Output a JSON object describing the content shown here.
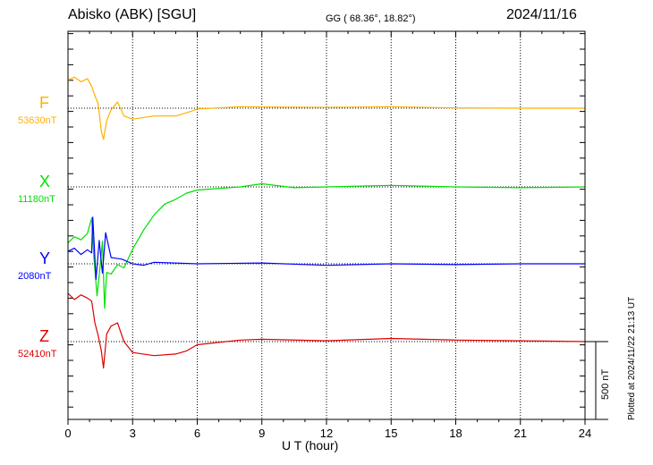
{
  "header": {
    "station": "Abisko (ABK)  [SGU]",
    "coords": "GG ( 68.36°,  18.82°)",
    "date": "2024/11/16"
  },
  "footer": {
    "plotted": "Plotted at 2024/11/22 21:13 UT"
  },
  "chart_data": {
    "type": "line",
    "xlabel": "U T (hour)",
    "xlim": [
      0,
      24
    ],
    "xticks": [
      "0",
      "3",
      "6",
      "9",
      "12",
      "15",
      "18",
      "21",
      "24"
    ],
    "scale_bar_label": "500 nT",
    "scale_bar_nT": 500,
    "series": [
      {
        "name": "F",
        "baseline": "53630nT",
        "color": "#ffb000",
        "x": [
          0,
          0.3,
          0.6,
          0.9,
          1.1,
          1.25,
          1.4,
          1.55,
          1.65,
          1.8,
          2.0,
          2.3,
          2.6,
          3.0,
          4.0,
          5.0,
          5.5,
          6.0,
          8.0,
          9.0,
          12.0,
          15.0,
          18.0,
          21.0,
          24.0
        ],
        "y": [
          180,
          200,
          170,
          190,
          140,
          80,
          30,
          -150,
          -200,
          -80,
          -10,
          40,
          -50,
          -70,
          -50,
          -50,
          -30,
          -5,
          10,
          8,
          5,
          10,
          2,
          0,
          0
        ]
      },
      {
        "name": "X",
        "baseline": "11180nT",
        "color": "#00dd00",
        "x": [
          0,
          0.3,
          0.6,
          0.9,
          1.1,
          1.2,
          1.35,
          1.5,
          1.6,
          1.7,
          1.8,
          2.0,
          2.3,
          2.6,
          3.0,
          3.5,
          4.0,
          4.5,
          5.0,
          5.5,
          6.0,
          8.0,
          9.0,
          10.5,
          12.0,
          15.0,
          18.0,
          21.0,
          24.0
        ],
        "y": [
          -360,
          -320,
          -340,
          -300,
          -200,
          -450,
          -700,
          -500,
          -350,
          -780,
          -550,
          -560,
          -500,
          -520,
          -400,
          -280,
          -180,
          -110,
          -80,
          -40,
          -20,
          0,
          20,
          -5,
          0,
          10,
          0,
          -5,
          0
        ]
      },
      {
        "name": "Y",
        "baseline": "2080nT",
        "color": "#0000ff",
        "x": [
          0,
          0.3,
          0.6,
          0.9,
          1.1,
          1.15,
          1.3,
          1.45,
          1.6,
          1.75,
          2.0,
          2.5,
          3.0,
          3.5,
          4.0,
          6.0,
          9.0,
          12.0,
          15.0,
          18.0,
          21.0,
          24.0
        ],
        "y": [
          80,
          100,
          60,
          90,
          70,
          300,
          -100,
          150,
          -60,
          200,
          40,
          30,
          0,
          -10,
          10,
          0,
          5,
          -10,
          0,
          -5,
          0,
          0
        ]
      },
      {
        "name": "Z",
        "baseline": "52410nT",
        "color": "#dd0000",
        "x": [
          0,
          0.3,
          0.6,
          0.9,
          1.1,
          1.25,
          1.4,
          1.55,
          1.65,
          1.8,
          2.0,
          2.3,
          2.6,
          3.0,
          4.0,
          5.0,
          5.5,
          6.0,
          8.0,
          9.0,
          12.0,
          15.0,
          18.0,
          21.0,
          24.0
        ],
        "y": [
          310,
          270,
          300,
          280,
          260,
          120,
          40,
          -60,
          -170,
          50,
          100,
          120,
          0,
          -70,
          -90,
          -80,
          -60,
          -20,
          10,
          15,
          5,
          20,
          10,
          5,
          0
        ]
      }
    ]
  }
}
